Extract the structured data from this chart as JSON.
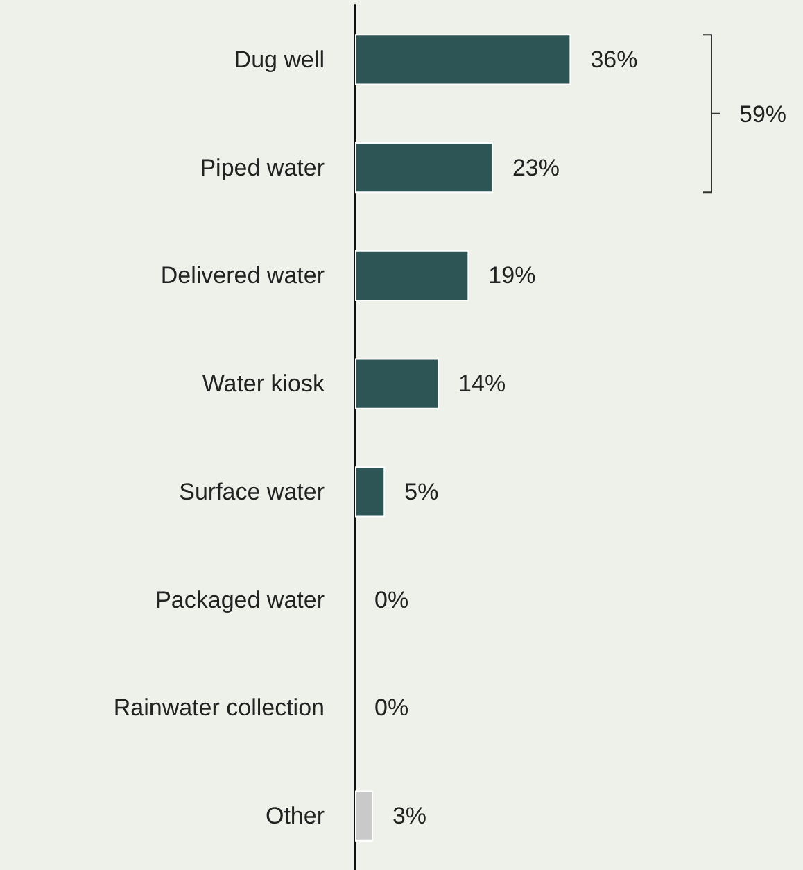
{
  "chart_data": {
    "type": "bar",
    "orientation": "horizontal",
    "categories": [
      "Dug well",
      "Piped water",
      "Delivered water",
      "Water kiosk",
      "Surface water",
      "Packaged water",
      "Rainwater collection",
      "Other"
    ],
    "values": [
      36,
      23,
      19,
      14,
      5,
      0,
      0,
      3
    ],
    "colors": [
      "#2d5556",
      "#2d5556",
      "#2d5556",
      "#2d5556",
      "#2d5556",
      "#2d5556",
      "#2d5556",
      "#c9c9c9"
    ],
    "value_labels": [
      "36%",
      "23%",
      "19%",
      "14%",
      "5%",
      "0%",
      "0%",
      "3%"
    ],
    "annotations": [
      "59%"
    ],
    "grid": false
  }
}
